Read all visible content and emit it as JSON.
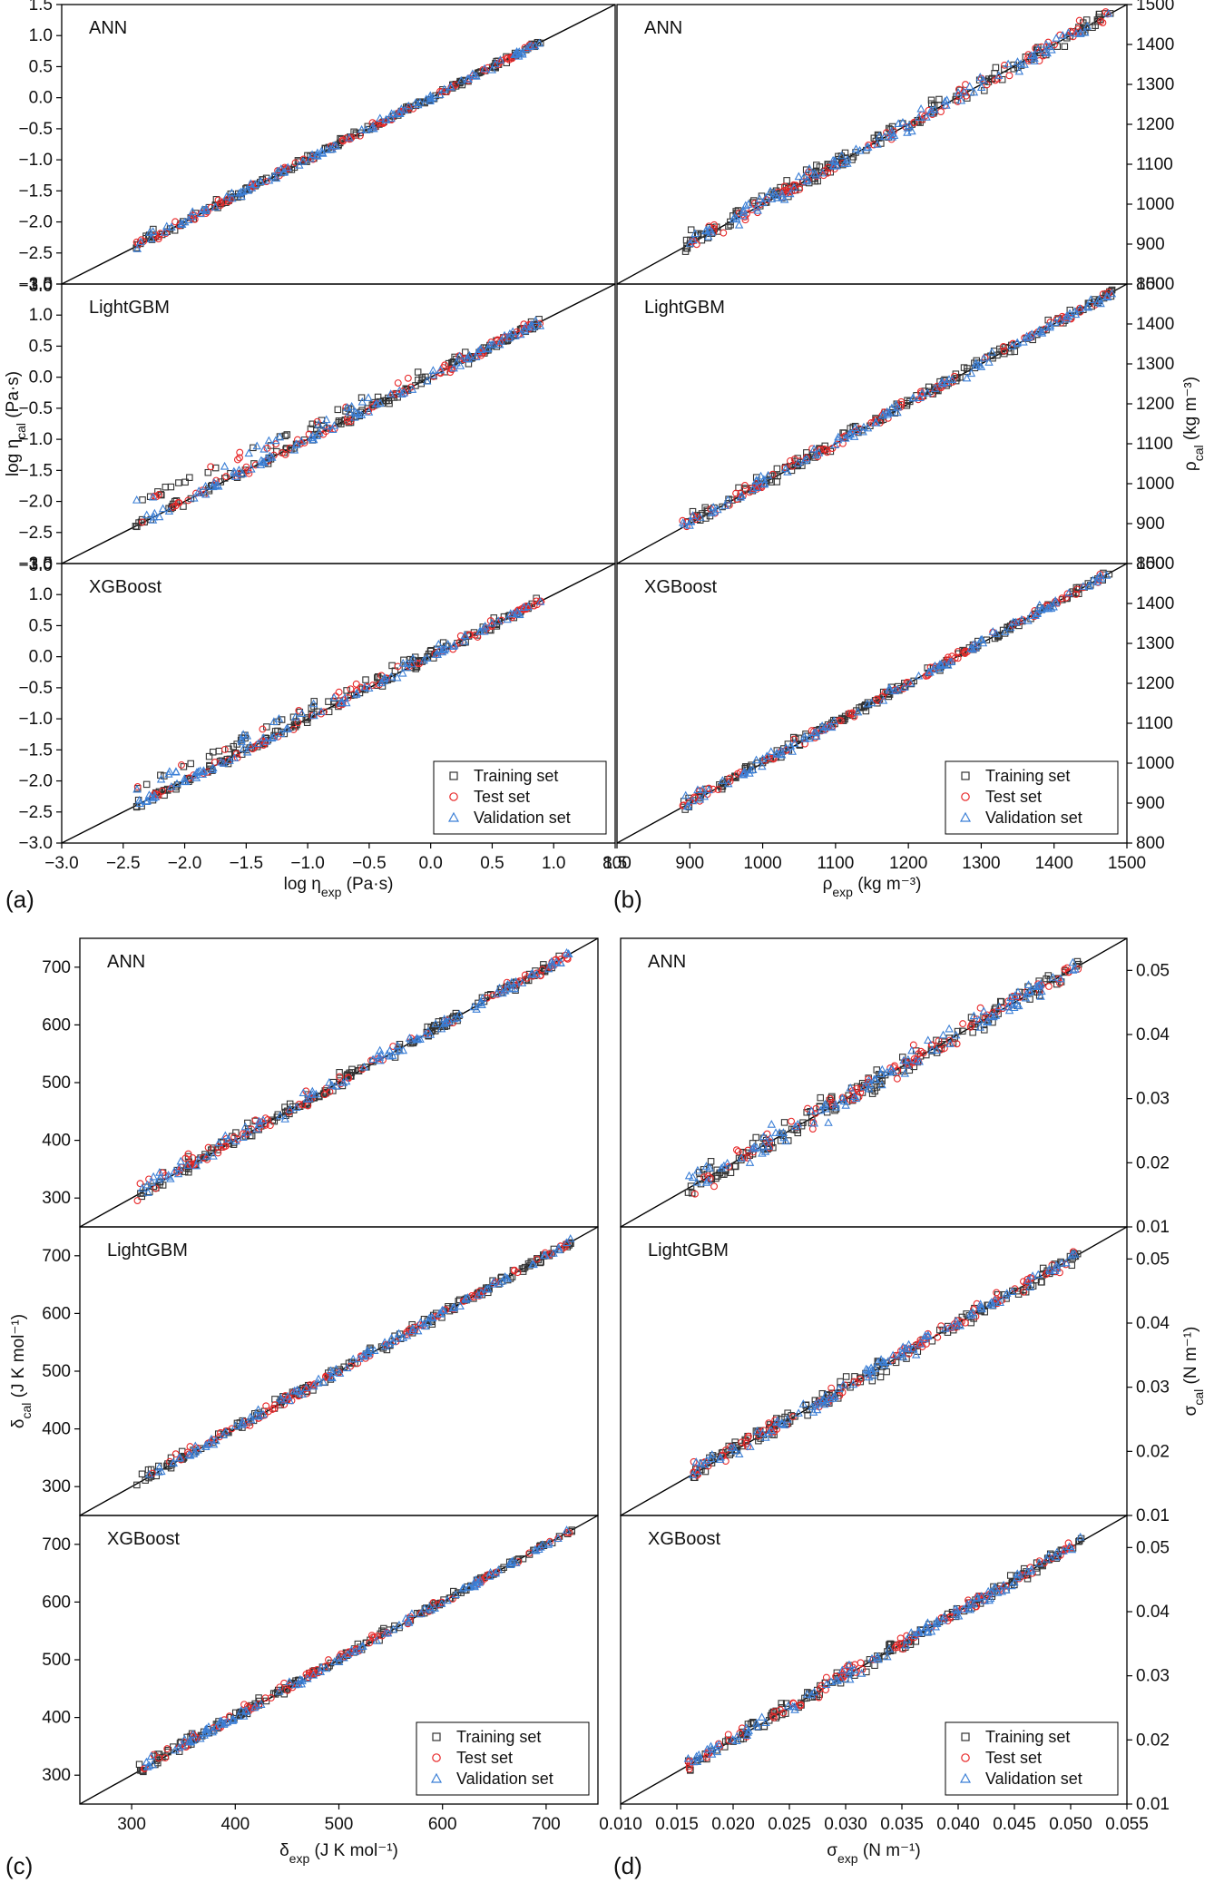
{
  "figure": {
    "panels": [
      {
        "letter": "(a)",
        "xlabel": {
          "main": "log η",
          "sub": "exp",
          "unit": " (Pa·s)"
        },
        "ylabel": {
          "main": "log η",
          "sub": "cal",
          "unit": " (Pa·s)"
        },
        "range": [
          -3.0,
          1.5
        ],
        "ticks": [
          -3.0,
          -2.5,
          -2.0,
          -1.5,
          -1.0,
          -0.5,
          0.0,
          0.5,
          1.0,
          1.5
        ],
        "tick_labels": [
          "−3.0",
          "−2.5",
          "−2.0",
          "−1.5",
          "−1.0",
          "−0.5",
          "0.0",
          "0.5",
          "1.0",
          "1.5"
        ],
        "overlap_label": "−3.0",
        "data_range": [
          -2.4,
          0.9
        ]
      },
      {
        "letter": "(b)",
        "xlabel": {
          "main": "ρ",
          "sub": "exp",
          "unit": " (kg m⁻³)"
        },
        "ylabel": {
          "main": "ρ",
          "sub": "cal",
          "unit": " (kg m⁻³)"
        },
        "range": [
          800,
          1500
        ],
        "ticks": [
          800,
          900,
          1000,
          1100,
          1200,
          1300,
          1400,
          1500
        ],
        "tick_labels": [
          "800",
          "900",
          "1000",
          "1100",
          "1200",
          "1300",
          "1400",
          "1500"
        ],
        "data_range": [
          890,
          1480
        ]
      },
      {
        "letter": "(c)",
        "xlabel": {
          "main": "δ",
          "sub": "exp",
          "unit": " (J K mol⁻¹)"
        },
        "ylabel": {
          "main": "δ",
          "sub": "cal",
          "unit": " (J K mol⁻¹)"
        },
        "range": [
          250,
          750
        ],
        "ticks": [
          300,
          400,
          500,
          600,
          700
        ],
        "tick_labels": [
          "300",
          "400",
          "500",
          "600",
          "700"
        ],
        "data_range": [
          305,
          725
        ]
      },
      {
        "letter": "(d)",
        "xlabel": {
          "main": "σ",
          "sub": "exp",
          "unit": " (N m⁻¹)"
        },
        "ylabel": {
          "main": "σ",
          "sub": "cal",
          "unit": " (N m⁻¹)"
        },
        "range": [
          0.01,
          0.055
        ],
        "ticks": [
          0.01,
          0.015,
          0.02,
          0.025,
          0.03,
          0.035,
          0.04,
          0.045,
          0.05,
          0.055
        ],
        "tick_labels": [
          "0.010",
          "0.015",
          "0.020",
          "0.025",
          "0.030",
          "0.035",
          "0.040",
          "0.045",
          "0.050",
          "0.055"
        ],
        "y_ticks": [
          0.01,
          0.02,
          0.03,
          0.04,
          0.05
        ],
        "y_tick_labels": [
          "0.01",
          "0.02",
          "0.03",
          "0.04",
          "0.05"
        ],
        "data_range": [
          0.016,
          0.051
        ]
      }
    ],
    "models": [
      "ANN",
      "LightGBM",
      "XGBoost"
    ],
    "legend": [
      "Training set",
      "Test set",
      "Validation set"
    ]
  },
  "chart_data": [
    {
      "type": "scatter",
      "title": "(a) ANN / LightGBM / XGBoost",
      "xlabel": "log ηexp (Pa·s)",
      "ylabel": "log ηcal (Pa·s)",
      "xlim": [
        -3.0,
        1.5
      ],
      "ylim": [
        -3.0,
        1.5
      ],
      "series": [
        {
          "name": "Training set",
          "marker": "square",
          "color": "#333333"
        },
        {
          "name": "Test set",
          "marker": "circle",
          "color": "#e8292a"
        },
        {
          "name": "Validation set",
          "marker": "triangle",
          "color": "#3b7fd6"
        }
      ],
      "reference_line": "y = x"
    },
    {
      "type": "scatter",
      "title": "(b) ANN / LightGBM / XGBoost",
      "xlabel": "ρexp (kg m⁻³)",
      "ylabel": "ρcal (kg m⁻³)",
      "xlim": [
        800,
        1500
      ],
      "ylim": [
        800,
        1500
      ],
      "series": [
        {
          "name": "Training set",
          "marker": "square",
          "color": "#333333"
        },
        {
          "name": "Test set",
          "marker": "circle",
          "color": "#e8292a"
        },
        {
          "name": "Validation set",
          "marker": "triangle",
          "color": "#3b7fd6"
        }
      ],
      "reference_line": "y = x"
    },
    {
      "type": "scatter",
      "title": "(c) ANN / LightGBM / XGBoost",
      "xlabel": "δexp (J K mol⁻¹)",
      "ylabel": "δcal (J K mol⁻¹)",
      "xlim": [
        250,
        750
      ],
      "ylim": [
        250,
        750
      ],
      "series": [
        {
          "name": "Training set",
          "marker": "square",
          "color": "#333333"
        },
        {
          "name": "Test set",
          "marker": "circle",
          "color": "#e8292a"
        },
        {
          "name": "Validation set",
          "marker": "triangle",
          "color": "#3b7fd6"
        }
      ],
      "reference_line": "y = x"
    },
    {
      "type": "scatter",
      "title": "(d) ANN / LightGBM / XGBoost",
      "xlabel": "σexp (N m⁻¹)",
      "ylabel": "σcal (N m⁻¹)",
      "xlim": [
        0.01,
        0.055
      ],
      "ylim": [
        0.01,
        0.055
      ],
      "series": [
        {
          "name": "Training set",
          "marker": "square",
          "color": "#333333"
        },
        {
          "name": "Test set",
          "marker": "circle",
          "color": "#e8292a"
        },
        {
          "name": "Validation set",
          "marker": "triangle",
          "color": "#3b7fd6"
        }
      ],
      "reference_line": "y = x"
    }
  ]
}
